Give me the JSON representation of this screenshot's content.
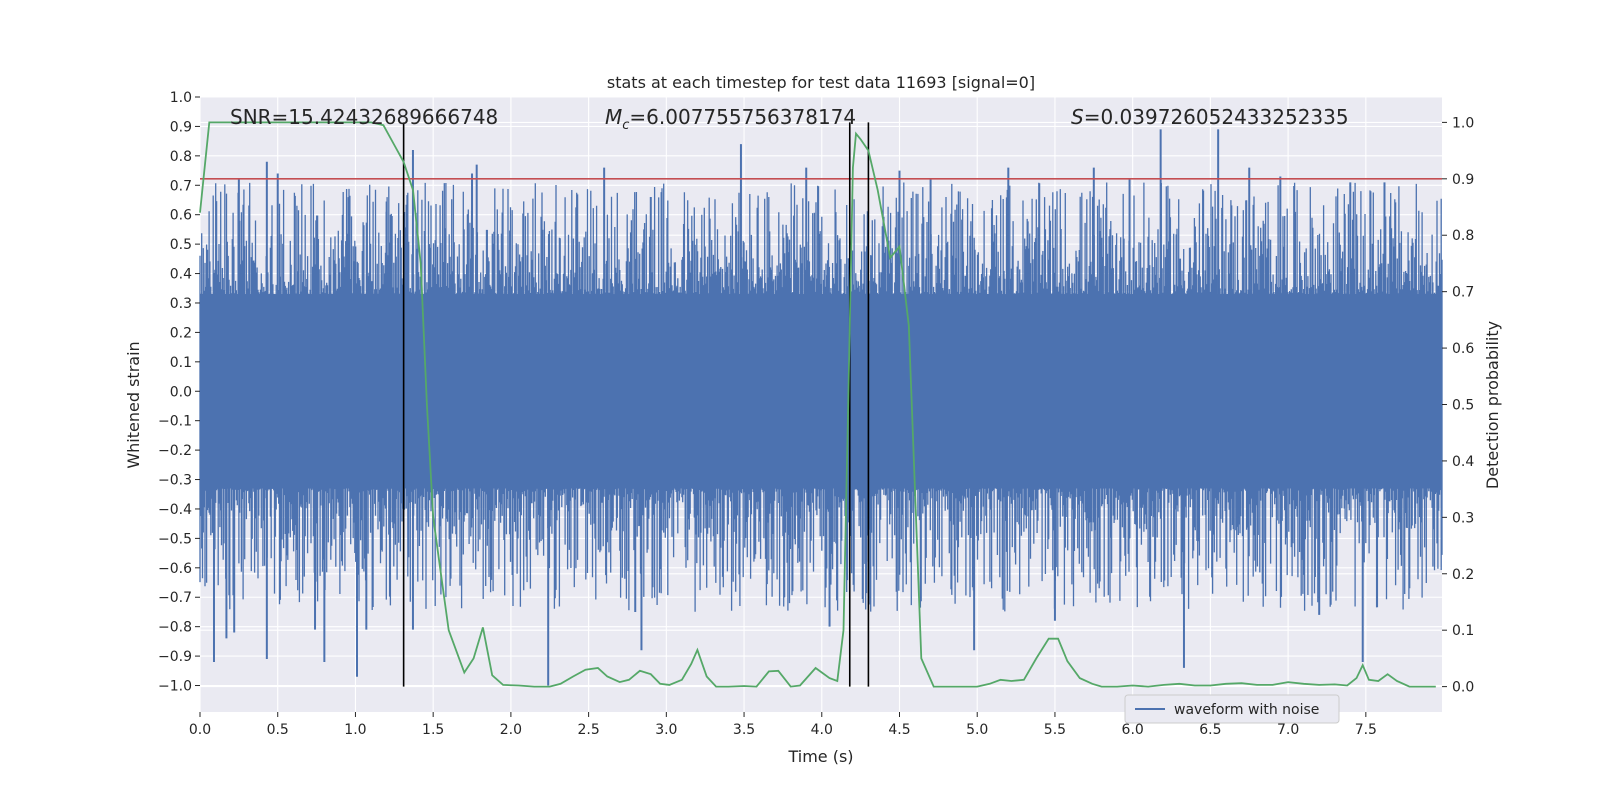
{
  "chart_data": {
    "type": "line",
    "title": "stats at each timestep for test data 11693 [signal=0]",
    "xlabel": "Time (s)",
    "ylabel": "Whitened strain",
    "y2label": "Detection probability",
    "xlim": [
      0,
      7.99
    ],
    "ylim": [
      -1.09,
      1.0
    ],
    "y2lim": [
      -0.045,
      1.045
    ],
    "x_ticks": [
      0.0,
      0.5,
      1.0,
      1.5,
      2.0,
      2.5,
      3.0,
      3.5,
      4.0,
      4.5,
      5.0,
      5.5,
      6.0,
      6.5,
      7.0,
      7.5
    ],
    "x_tick_labels": [
      "0.0",
      "0.5",
      "1.0",
      "1.5",
      "2.0",
      "2.5",
      "3.0",
      "3.5",
      "4.0",
      "4.5",
      "5.0",
      "5.5",
      "6.0",
      "6.5",
      "7.0",
      "7.5"
    ],
    "y_ticks": [
      1.0,
      0.9,
      0.8,
      0.7,
      0.6,
      0.5,
      0.4,
      0.3,
      0.2,
      0.1,
      0.0,
      -0.1,
      -0.2,
      -0.3,
      -0.4,
      -0.5,
      -0.6,
      -0.7,
      -0.8,
      -0.9,
      -1.0
    ],
    "y_tick_labels": [
      "1.0",
      "0.9",
      "0.8",
      "0.7",
      "0.6",
      "0.5",
      "0.4",
      "0.3",
      "0.2",
      "0.1",
      "0.0",
      "−0.1",
      "−0.2",
      "−0.3",
      "−0.4",
      "−0.5",
      "−0.6",
      "−0.7",
      "−0.8",
      "−0.9",
      "−1.0"
    ],
    "y2_ticks": [
      1.0,
      0.9,
      0.8,
      0.7,
      0.6,
      0.5,
      0.4,
      0.3,
      0.2,
      0.1,
      0.0
    ],
    "y2_tick_labels": [
      "1.0",
      "0.9",
      "0.8",
      "0.7",
      "0.6",
      "0.5",
      "0.4",
      "0.3",
      "0.2",
      "0.1",
      "0.0"
    ],
    "grid": true,
    "legend": {
      "position": "lower-right",
      "entries": [
        "waveform with noise"
      ]
    },
    "annotations": {
      "snr": "SNR=15.42432689666748",
      "mc_symbol": "M",
      "mc_sub": "c",
      "mc_value": "=6.007755756378174",
      "s_symbol": "S",
      "s_value": "=0.039726052433252335"
    },
    "threshold_prob": 0.9,
    "vertical_lines_x": [
      1.31,
      4.18,
      4.3
    ],
    "waveform": {
      "name": "waveform with noise",
      "t_start": 0.0,
      "t_end": 7.99,
      "band": 0.33,
      "spikes_pos": [
        [
          0.43,
          0.78
        ],
        [
          1.37,
          0.82
        ],
        [
          1.78,
          0.77
        ],
        [
          2.6,
          0.76
        ],
        [
          3.48,
          0.84
        ],
        [
          3.9,
          0.76
        ],
        [
          4.5,
          0.75
        ],
        [
          5.2,
          0.76
        ],
        [
          5.75,
          0.76
        ],
        [
          6.18,
          0.89
        ],
        [
          6.55,
          0.89
        ],
        [
          6.75,
          0.76
        ],
        [
          0.25,
          0.72
        ],
        [
          1.2,
          0.61
        ],
        [
          2.9,
          0.66
        ],
        [
          0.5,
          0.74
        ],
        [
          1.75,
          0.74
        ],
        [
          4.7,
          0.72
        ],
        [
          5.98,
          0.72
        ],
        [
          6.95,
          0.73
        ],
        [
          7.4,
          0.71
        ],
        [
          7.62,
          0.71
        ]
      ],
      "spikes_neg": [
        [
          0.09,
          -0.92
        ],
        [
          0.17,
          -0.84
        ],
        [
          0.43,
          -0.91
        ],
        [
          0.8,
          -0.92
        ],
        [
          1.01,
          -0.97
        ],
        [
          1.07,
          -0.81
        ],
        [
          2.24,
          -1.0
        ],
        [
          2.84,
          -0.88
        ],
        [
          4.98,
          -0.88
        ],
        [
          6.33,
          -0.94
        ],
        [
          7.48,
          -0.92
        ],
        [
          1.37,
          -0.81
        ],
        [
          0.74,
          -0.81
        ],
        [
          0.22,
          -0.82
        ],
        [
          2.8,
          -0.75
        ],
        [
          4.05,
          -0.8
        ],
        [
          5.5,
          -0.78
        ],
        [
          7.2,
          -0.76
        ]
      ]
    },
    "probability": {
      "name": "detection probability",
      "x": [
        0.0,
        0.06,
        0.1,
        0.2,
        0.4,
        0.6,
        0.8,
        1.0,
        1.1,
        1.18,
        1.25,
        1.31,
        1.37,
        1.42,
        1.46,
        1.5,
        1.55,
        1.6,
        1.7,
        1.76,
        1.82,
        1.88,
        1.95,
        2.05,
        2.15,
        2.25,
        2.32,
        2.4,
        2.48,
        2.56,
        2.62,
        2.7,
        2.76,
        2.83,
        2.9,
        2.96,
        3.02,
        3.1,
        3.16,
        3.2,
        3.26,
        3.32,
        3.4,
        3.5,
        3.58,
        3.66,
        3.72,
        3.8,
        3.86,
        3.96,
        4.05,
        4.1,
        4.14,
        4.17,
        4.2,
        4.22,
        4.25,
        4.3,
        4.36,
        4.44,
        4.5,
        4.56,
        4.64,
        4.72,
        4.8,
        4.9,
        5.0,
        5.08,
        5.15,
        5.22,
        5.3,
        5.38,
        5.46,
        5.52,
        5.58,
        5.66,
        5.74,
        5.8,
        5.9,
        6.0,
        6.1,
        6.2,
        6.3,
        6.4,
        6.5,
        6.6,
        6.7,
        6.8,
        6.9,
        7.0,
        7.1,
        7.2,
        7.3,
        7.38,
        7.44,
        7.48,
        7.52,
        7.58,
        7.64,
        7.7,
        7.78,
        7.85,
        7.95
      ],
      "y": [
        0.84,
        1.0,
        1.0,
        1.0,
        1.0,
        1.0,
        1.0,
        1.0,
        1.0,
        0.995,
        0.96,
        0.93,
        0.88,
        0.75,
        0.5,
        0.3,
        0.2,
        0.1,
        0.025,
        0.05,
        0.105,
        0.02,
        0.003,
        0.002,
        0.0,
        0.0,
        0.005,
        0.018,
        0.03,
        0.033,
        0.018,
        0.008,
        0.012,
        0.028,
        0.022,
        0.005,
        0.003,
        0.012,
        0.04,
        0.065,
        0.018,
        0.0,
        0.0,
        0.001,
        0.0,
        0.027,
        0.028,
        0.0,
        0.002,
        0.033,
        0.015,
        0.01,
        0.1,
        0.5,
        0.92,
        0.98,
        0.97,
        0.95,
        0.88,
        0.76,
        0.78,
        0.64,
        0.05,
        0.0,
        0.0,
        0.0,
        0.0,
        0.005,
        0.012,
        0.01,
        0.012,
        0.05,
        0.085,
        0.085,
        0.045,
        0.015,
        0.005,
        0.0,
        0.0,
        0.002,
        0.0,
        0.003,
        0.005,
        0.002,
        0.002,
        0.005,
        0.006,
        0.003,
        0.003,
        0.008,
        0.005,
        0.003,
        0.004,
        0.002,
        0.015,
        0.038,
        0.012,
        0.01,
        0.022,
        0.01,
        0.0,
        0.0,
        0.0
      ]
    }
  }
}
